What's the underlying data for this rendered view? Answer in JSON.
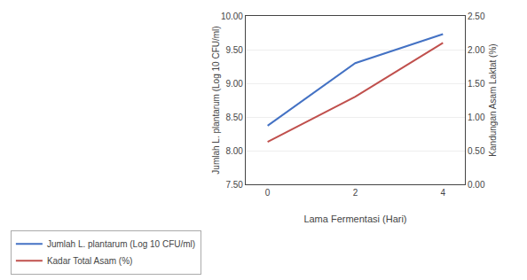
{
  "chart_data": {
    "type": "line",
    "x": [
      0,
      2,
      4
    ],
    "xlim": [
      -0.5,
      4.5
    ],
    "xticks": [
      0,
      2,
      4
    ],
    "xlabel": "Lama Fermentasi (Hari)",
    "ylabel": "Jumlah L. plantarum (Log 10 CFU/ml)",
    "y2label": "Kandungan Asam Laktat (%)",
    "ylim": [
      7.5,
      10.0
    ],
    "yticks": [
      {
        "value": 7.5,
        "label": "7.50"
      },
      {
        "value": 8.0,
        "label": "8.00"
      },
      {
        "value": 8.5,
        "label": "8.50"
      },
      {
        "value": 9.0,
        "label": "9.00"
      },
      {
        "value": 9.5,
        "label": "9.50"
      },
      {
        "value": 10.0,
        "label": "10.00"
      }
    ],
    "y2lim": [
      0.0,
      2.5
    ],
    "y2ticks": [
      {
        "value": 0.0,
        "label": "0.00"
      },
      {
        "value": 0.5,
        "label": "0.50"
      },
      {
        "value": 1.0,
        "label": "1.00"
      },
      {
        "value": 1.5,
        "label": "1.50"
      },
      {
        "value": 2.0,
        "label": "2.00"
      },
      {
        "value": 2.5,
        "label": "2.50"
      }
    ],
    "series": [
      {
        "name": "Jumlah L. plantarum (Log 10 CFU/ml)",
        "color": "#4472C4",
        "values": [
          8.37,
          9.3,
          9.73
        ]
      },
      {
        "name": "Kadar Total Asam (%)",
        "color": "#C0504D",
        "values": [
          0.63,
          1.3,
          2.1
        ],
        "axis": "y2"
      }
    ],
    "grid": true,
    "legend": "lower left"
  }
}
